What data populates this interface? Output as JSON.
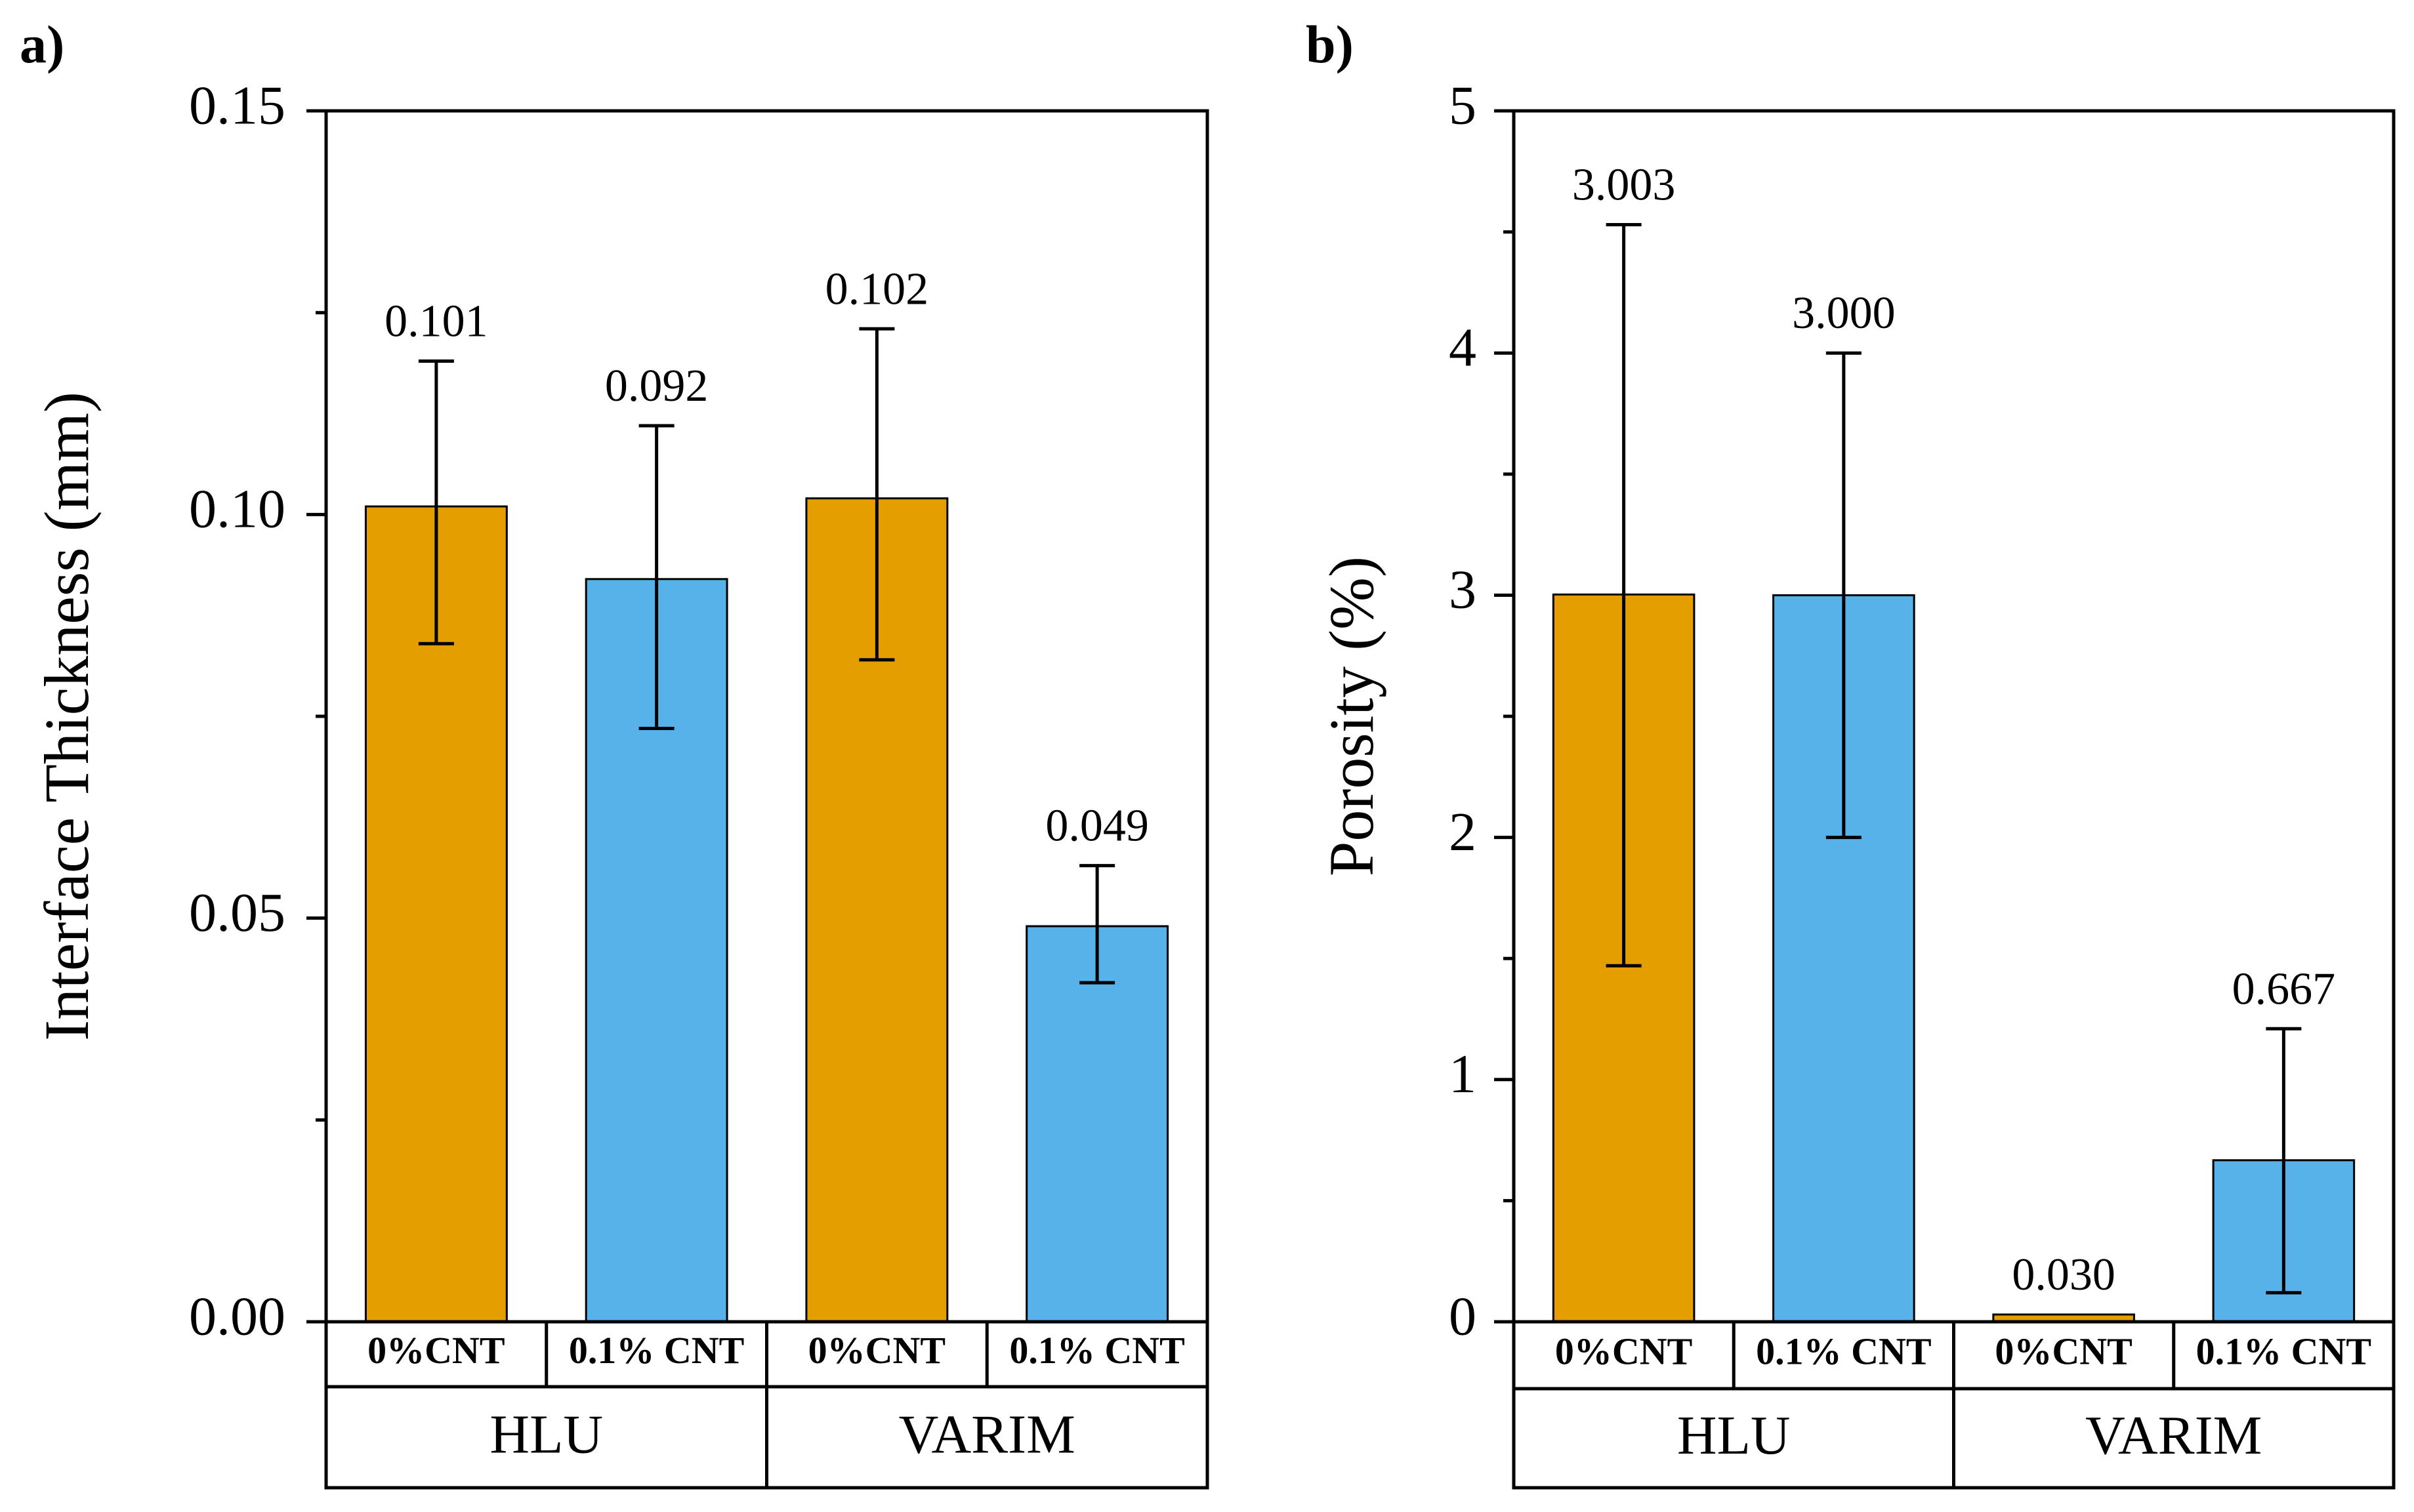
{
  "colors": {
    "orange": "#e59e00",
    "blue": "#56b2e8",
    "black": "#000000",
    "white": "#ffffff"
  },
  "chart_data": [
    {
      "type": "bar",
      "panel_label": "a)",
      "title": "",
      "xlabel": "",
      "ylabel": "Interface Thickness (mm)",
      "ylim": [
        0,
        0.15
      ],
      "y_ticks": [
        0,
        0.05,
        0.1,
        0.15
      ],
      "y_tick_labels": [
        "0.00",
        "0.05",
        "0.10",
        "0.15"
      ],
      "y_minor_ticks": [
        0.025,
        0.075,
        0.125
      ],
      "categories": [
        "0%CNT",
        "0.1% CNT",
        "0%CNT",
        "0.1% CNT"
      ],
      "groups": [
        "HLU",
        "VARIM"
      ],
      "bars": [
        {
          "group": "HLU",
          "category": "0%CNT",
          "value": 0.101,
          "err_low": 0.084,
          "err_high": 0.119,
          "label": "0.101",
          "color": "#e59e00"
        },
        {
          "group": "HLU",
          "category": "0.1% CNT",
          "value": 0.092,
          "err_low": 0.0735,
          "err_high": 0.111,
          "label": "0.092",
          "color": "#56b2e8"
        },
        {
          "group": "VARIM",
          "category": "0%CNT",
          "value": 0.102,
          "err_low": 0.082,
          "err_high": 0.123,
          "label": "0.102",
          "color": "#e59e00"
        },
        {
          "group": "VARIM",
          "category": "0.1% CNT",
          "value": 0.049,
          "err_low": 0.042,
          "err_high": 0.0565,
          "label": "0.049",
          "color": "#56b2e8"
        }
      ]
    },
    {
      "type": "bar",
      "panel_label": "b)",
      "title": "",
      "xlabel": "",
      "ylabel": "Porosity (%)",
      "ylim": [
        0,
        5
      ],
      "y_ticks": [
        0,
        1,
        2,
        3,
        4,
        5
      ],
      "y_tick_labels": [
        "0",
        "1",
        "2",
        "3",
        "4",
        "5"
      ],
      "y_minor_ticks": [
        0.5,
        1.5,
        2.5,
        3.5,
        4.5
      ],
      "categories": [
        "0%CNT",
        "0.1% CNT",
        "0%CNT",
        "0.1% CNT"
      ],
      "groups": [
        "HLU",
        "VARIM"
      ],
      "bars": [
        {
          "group": "HLU",
          "category": "0%CNT",
          "value": 3.003,
          "err_low": 1.47,
          "err_high": 4.53,
          "label": "3.003",
          "color": "#e59e00"
        },
        {
          "group": "HLU",
          "category": "0.1% CNT",
          "value": 3.0,
          "err_low": 2.0,
          "err_high": 4.0,
          "label": "3.000",
          "color": "#56b2e8"
        },
        {
          "group": "VARIM",
          "category": "0%CNT",
          "value": 0.03,
          "err_low": null,
          "err_high": null,
          "label": "0.030",
          "color": "#e59e00"
        },
        {
          "group": "VARIM",
          "category": "0.1% CNT",
          "value": 0.667,
          "err_low": 0.12,
          "err_high": 1.21,
          "label": "0.667",
          "color": "#56b2e8"
        }
      ]
    }
  ]
}
